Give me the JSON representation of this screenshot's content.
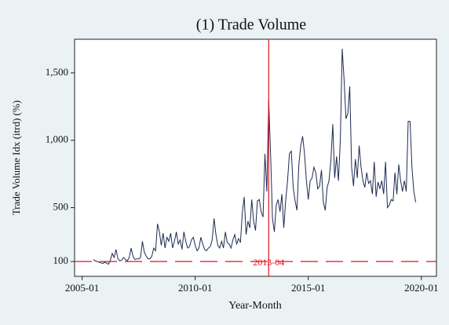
{
  "chart_data": {
    "type": "line",
    "title": "(1) Trade Volume",
    "x_label": "Year-Month",
    "y_label": "Trade Volume Idx (itrd) (%)",
    "x": [
      "2005-07",
      "2005-08",
      "2005-09",
      "2005-10",
      "2005-11",
      "2005-12",
      "2006-01",
      "2006-02",
      "2006-03",
      "2006-04",
      "2006-05",
      "2006-06",
      "2006-07",
      "2006-08",
      "2006-09",
      "2006-10",
      "2006-11",
      "2006-12",
      "2007-01",
      "2007-02",
      "2007-03",
      "2007-04",
      "2007-05",
      "2007-06",
      "2007-07",
      "2007-08",
      "2007-09",
      "2007-10",
      "2007-11",
      "2007-12",
      "2008-01",
      "2008-02",
      "2008-03",
      "2008-04",
      "2008-05",
      "2008-06",
      "2008-07",
      "2008-08",
      "2008-09",
      "2008-10",
      "2008-11",
      "2008-12",
      "2009-01",
      "2009-02",
      "2009-03",
      "2009-04",
      "2009-05",
      "2009-06",
      "2009-07",
      "2009-08",
      "2009-09",
      "2009-10",
      "2009-11",
      "2009-12",
      "2010-01",
      "2010-02",
      "2010-03",
      "2010-04",
      "2010-05",
      "2010-06",
      "2010-07",
      "2010-08",
      "2010-09",
      "2010-10",
      "2010-11",
      "2010-12",
      "2011-01",
      "2011-02",
      "2011-03",
      "2011-04",
      "2011-05",
      "2011-06",
      "2011-07",
      "2011-08",
      "2011-09",
      "2011-10",
      "2011-11",
      "2011-12",
      "2012-01",
      "2012-02",
      "2012-03",
      "2012-04",
      "2012-05",
      "2012-06",
      "2012-07",
      "2012-08",
      "2012-09",
      "2012-10",
      "2012-11",
      "2012-12",
      "2013-01",
      "2013-02",
      "2013-03",
      "2013-04",
      "2013-05",
      "2013-06",
      "2013-07",
      "2013-08",
      "2013-09",
      "2013-10",
      "2013-11",
      "2013-12",
      "2014-01",
      "2014-02",
      "2014-03",
      "2014-04",
      "2014-05",
      "2014-06",
      "2014-07",
      "2014-08",
      "2014-09",
      "2014-10",
      "2014-11",
      "2014-12",
      "2015-01",
      "2015-02",
      "2015-03",
      "2015-04",
      "2015-05",
      "2015-06",
      "2015-07",
      "2015-08",
      "2015-09",
      "2015-10",
      "2015-11",
      "2015-12",
      "2016-01",
      "2016-02",
      "2016-03",
      "2016-04",
      "2016-05",
      "2016-06",
      "2016-07",
      "2016-08",
      "2016-09",
      "2016-10",
      "2016-11",
      "2016-12",
      "2017-01",
      "2017-02",
      "2017-03",
      "2017-04",
      "2017-05",
      "2017-06",
      "2017-07",
      "2017-08",
      "2017-09",
      "2017-10",
      "2017-11",
      "2017-12",
      "2018-01",
      "2018-02",
      "2018-03",
      "2018-04",
      "2018-05",
      "2018-06",
      "2018-07",
      "2018-08",
      "2018-09",
      "2018-10",
      "2018-11",
      "2018-12",
      "2019-01",
      "2019-02",
      "2019-03",
      "2019-04",
      "2019-05",
      "2019-06",
      "2019-07",
      "2019-08",
      "2019-09",
      "2019-10"
    ],
    "values": [
      115,
      105,
      100,
      95,
      90,
      85,
      95,
      88,
      80,
      110,
      160,
      130,
      190,
      120,
      105,
      110,
      130,
      115,
      105,
      130,
      200,
      140,
      115,
      120,
      120,
      130,
      250,
      170,
      140,
      120,
      120,
      140,
      200,
      180,
      380,
      320,
      220,
      310,
      200,
      280,
      250,
      310,
      200,
      250,
      320,
      230,
      260,
      190,
      320,
      250,
      200,
      210,
      260,
      280,
      220,
      180,
      200,
      280,
      230,
      190,
      180,
      200,
      210,
      260,
      420,
      300,
      220,
      200,
      250,
      200,
      320,
      240,
      230,
      200,
      260,
      300,
      230,
      270,
      240,
      460,
      580,
      300,
      400,
      350,
      560,
      400,
      330,
      550,
      560,
      470,
      430,
      900,
      620,
      1300,
      900,
      420,
      320,
      520,
      560,
      470,
      600,
      350,
      550,
      700,
      900,
      920,
      650,
      550,
      480,
      820,
      960,
      1030,
      900,
      700,
      560,
      700,
      720,
      800,
      760,
      640,
      660,
      780,
      540,
      480,
      650,
      700,
      850,
      1120,
      720,
      880,
      700,
      1000,
      1680,
      1450,
      1160,
      1200,
      1400,
      800,
      660,
      860,
      720,
      960,
      800,
      700,
      650,
      760,
      680,
      700,
      600,
      840,
      580,
      690,
      640,
      700,
      600,
      840,
      500,
      520,
      560,
      550,
      760,
      600,
      820,
      700,
      620,
      700,
      620,
      1140,
      1140,
      800,
      620,
      540
    ],
    "color": "#1f2a52",
    "xlim": [
      "2004-09",
      "2020-09"
    ],
    "xticks": [
      "2005-01",
      "2010-01",
      "2015-01",
      "2020-01"
    ],
    "ylim": [
      -10,
      1750
    ],
    "yticks": [
      100,
      500,
      {
        "value": 1000,
        "label": "1,000"
      },
      {
        "value": 1500,
        "label": "1,500"
      }
    ],
    "hline": 100,
    "vline": "2013-04",
    "vline_label": "2013-04",
    "ref_color": "#e0141e"
  }
}
